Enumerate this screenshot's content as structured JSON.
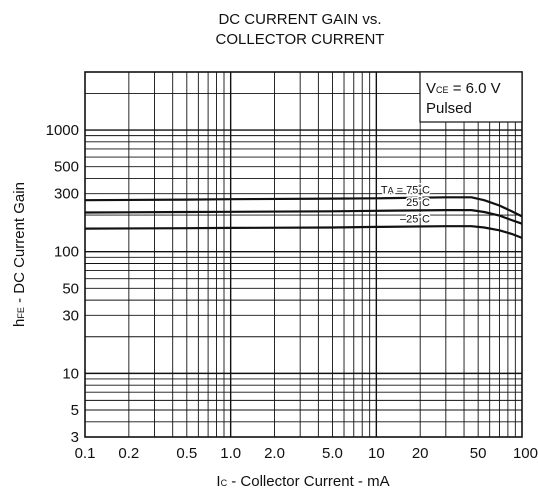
{
  "chart_data": {
    "type": "line",
    "title_lines": [
      "DC CURRENT GAIN vs.",
      "COLLECTOR CURRENT"
    ],
    "xlabel": {
      "prefix": "I",
      "sub": "C",
      "rest": " - Collector Current - mA"
    },
    "ylabel": {
      "prefix": "h",
      "sub": "FE",
      "rest": " - DC Current Gain"
    },
    "x_scale": "log",
    "y_scale": "log",
    "xlim": [
      0.1,
      100
    ],
    "ylim": [
      3,
      3000
    ],
    "x_ticks": [
      {
        "value": 0.1,
        "label": "0.1"
      },
      {
        "value": 0.2,
        "label": "0.2"
      },
      {
        "value": 0.5,
        "label": "0.5"
      },
      {
        "value": 1,
        "label": "1.0"
      },
      {
        "value": 2,
        "label": "2.0"
      },
      {
        "value": 5,
        "label": "5.0"
      },
      {
        "value": 10,
        "label": "10"
      },
      {
        "value": 20,
        "label": "20"
      },
      {
        "value": 50,
        "label": "50"
      },
      {
        "value": 100,
        "label": "100"
      }
    ],
    "y_ticks": [
      {
        "value": 3,
        "label": "3"
      },
      {
        "value": 5,
        "label": "5"
      },
      {
        "value": 10,
        "label": "10"
      },
      {
        "value": 30,
        "label": "30"
      },
      {
        "value": 50,
        "label": "50"
      },
      {
        "value": 100,
        "label": "100"
      },
      {
        "value": 300,
        "label": "300"
      },
      {
        "value": 500,
        "label": "500"
      },
      {
        "value": 1000,
        "label": "1000"
      }
    ],
    "grid": true,
    "legend_box": {
      "placement": "top-right",
      "line1": {
        "prefix": "V",
        "sub": "CE",
        "rest": " = 6.0 V"
      },
      "line2": "Pulsed"
    },
    "series": [
      {
        "name": "TA = 75˚C",
        "label": {
          "prefix": "T",
          "sub": "A",
          "rest": " = 75˚C"
        },
        "x": [
          0.1,
          0.5,
          1,
          5,
          10,
          30,
          45,
          55,
          70,
          85,
          100
        ],
        "y": [
          265,
          268,
          270,
          273,
          275,
          280,
          280,
          265,
          240,
          215,
          195
        ]
      },
      {
        "name": "25˚C",
        "label": {
          "prefix": "",
          "sub": "",
          "rest": "25˚C"
        },
        "x": [
          0.1,
          0.5,
          1,
          5,
          10,
          30,
          45,
          55,
          70,
          85,
          100
        ],
        "y": [
          210,
          212,
          213,
          215,
          217,
          220,
          220,
          212,
          198,
          182,
          170
        ]
      },
      {
        "name": "–25˚C",
        "label": {
          "prefix": "",
          "sub": "",
          "rest": "–25˚C"
        },
        "x": [
          0.1,
          0.5,
          1,
          5,
          10,
          30,
          45,
          55,
          70,
          85,
          100
        ],
        "y": [
          155,
          156,
          157,
          158,
          160,
          162,
          162,
          158,
          150,
          140,
          130
        ]
      }
    ]
  }
}
